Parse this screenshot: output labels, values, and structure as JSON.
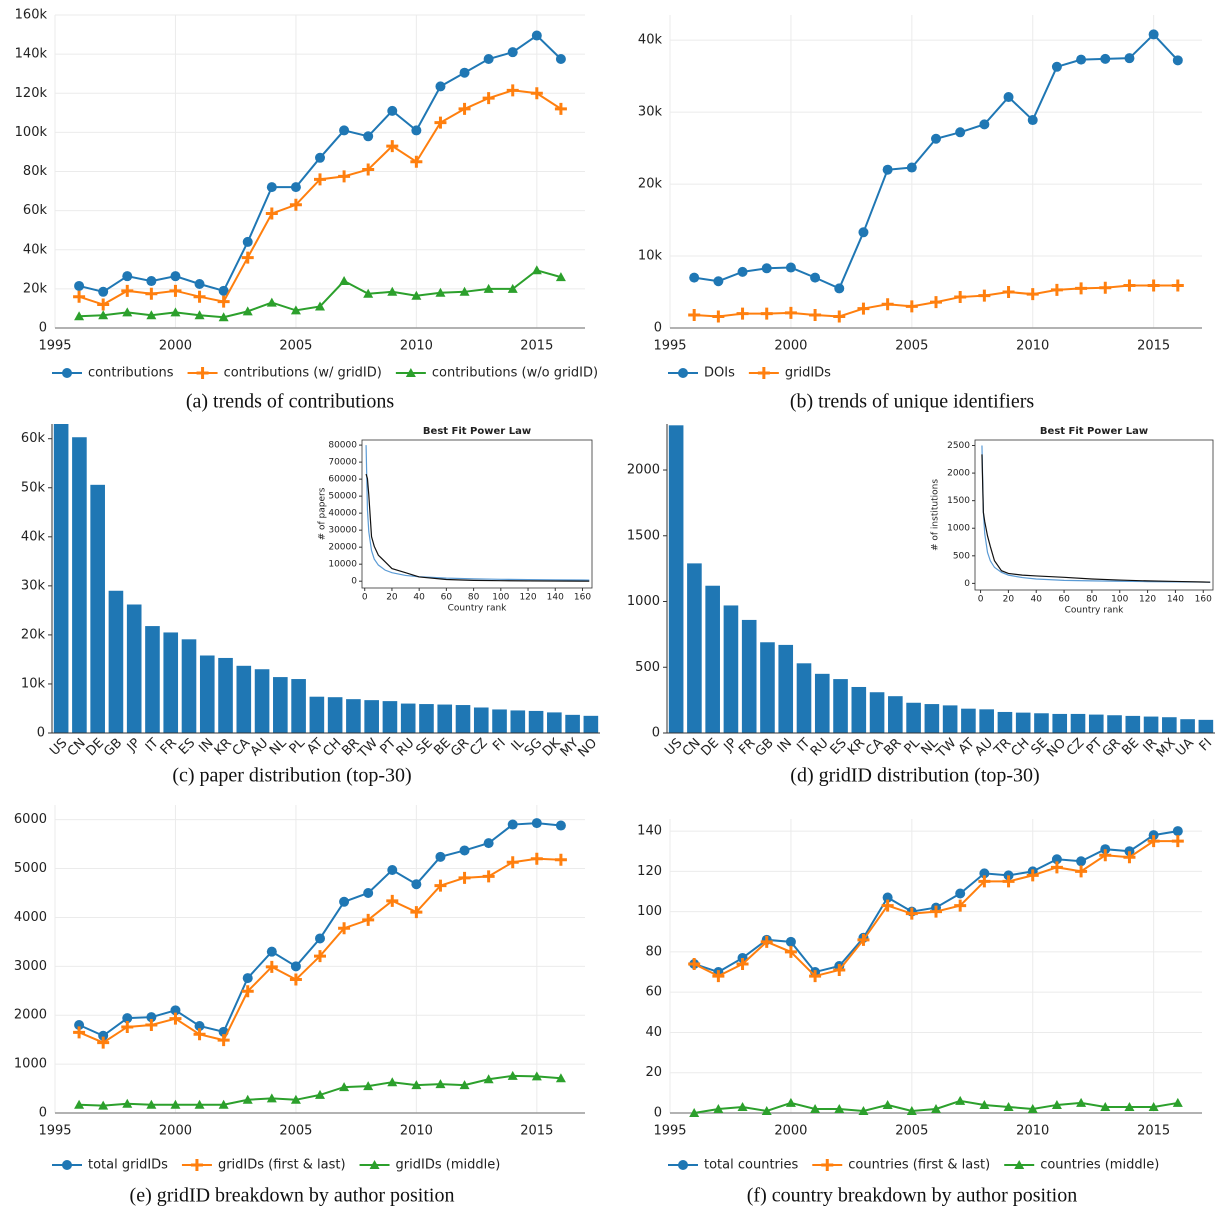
{
  "chart_data": [
    {
      "type": "line",
      "caption": "(a) trends of contributions",
      "x": [
        1996,
        1997,
        1998,
        1999,
        2000,
        2001,
        2002,
        2003,
        2004,
        2005,
        2006,
        2007,
        2008,
        2009,
        2010,
        2011,
        2012,
        2013,
        2014,
        2015,
        2016
      ],
      "xlim": [
        1995,
        2017
      ],
      "xticks": [
        1995,
        2000,
        2005,
        2010,
        2015
      ],
      "ylim": [
        0,
        160000
      ],
      "yticks": [
        0,
        {
          "value": 20000,
          "label": "20k"
        },
        {
          "value": 40000,
          "label": "40k"
        },
        {
          "value": 60000,
          "label": "60k"
        },
        {
          "value": 80000,
          "label": "80k"
        },
        {
          "value": 100000,
          "label": "100k"
        },
        {
          "value": 120000,
          "label": "120k"
        },
        {
          "value": 140000,
          "label": "140k"
        },
        {
          "value": 160000,
          "label": "160k"
        }
      ],
      "grid": true,
      "legend": "bottom",
      "series": [
        {
          "name": "contributions",
          "color": "#1f77b4",
          "marker": "circle",
          "values": [
            21500,
            18500,
            26500,
            24000,
            26500,
            22500,
            19000,
            44000,
            72000,
            72000,
            87000,
            101000,
            98000,
            111000,
            101000,
            123500,
            130500,
            137500,
            141000,
            149500,
            137500
          ]
        },
        {
          "name": "contributions (w/ gridID)",
          "color": "#ff7f0e",
          "marker": "plus",
          "values": [
            16000,
            12000,
            19000,
            17500,
            19000,
            16000,
            13500,
            36000,
            58500,
            63000,
            76000,
            77500,
            81000,
            93000,
            85000,
            105000,
            112000,
            117500,
            121500,
            120000,
            112000
          ]
        },
        {
          "name": "contributions (w/o gridID)",
          "color": "#2ca02c",
          "marker": "triangle",
          "values": [
            6000,
            6500,
            8000,
            6500,
            8000,
            6500,
            5500,
            8500,
            13000,
            9000,
            11000,
            24000,
            17500,
            18500,
            16500,
            18000,
            18500,
            20000,
            20000,
            29500,
            26000
          ]
        }
      ]
    },
    {
      "type": "line",
      "caption": "(b) trends of unique identifiers",
      "x": [
        1996,
        1997,
        1998,
        1999,
        2000,
        2001,
        2002,
        2003,
        2004,
        2005,
        2006,
        2007,
        2008,
        2009,
        2010,
        2011,
        2012,
        2013,
        2014,
        2015,
        2016
      ],
      "xlim": [
        1995,
        2017
      ],
      "xticks": [
        1995,
        2000,
        2005,
        2010,
        2015
      ],
      "ylim": [
        0,
        43500
      ],
      "yticks": [
        0,
        {
          "value": 10000,
          "label": "10k"
        },
        {
          "value": 20000,
          "label": "20k"
        },
        {
          "value": 30000,
          "label": "30k"
        },
        {
          "value": 40000,
          "label": "40k"
        }
      ],
      "grid": true,
      "legend": "bottom",
      "series": [
        {
          "name": "DOIs",
          "color": "#1f77b4",
          "marker": "circle",
          "values": [
            7000,
            6500,
            7800,
            8300,
            8400,
            7000,
            5500,
            13300,
            22000,
            22300,
            26300,
            27200,
            28300,
            32100,
            28900,
            36300,
            37300,
            37400,
            37500,
            40800,
            37200
          ]
        },
        {
          "name": "gridIDs",
          "color": "#ff7f0e",
          "marker": "plus",
          "values": [
            1800,
            1600,
            2000,
            2000,
            2100,
            1800,
            1600,
            2700,
            3300,
            3000,
            3600,
            4300,
            4500,
            5000,
            4700,
            5300,
            5500,
            5600,
            5900,
            5900,
            5900
          ]
        }
      ]
    },
    {
      "type": "bar",
      "caption": "(c) paper distribution (top-30)",
      "color": "#1f77b4",
      "categories": [
        "US",
        "CN",
        "DE",
        "GB",
        "JP",
        "IT",
        "FR",
        "ES",
        "IN",
        "KR",
        "CA",
        "AU",
        "NL",
        "PL",
        "AT",
        "CH",
        "BR",
        "TW",
        "PT",
        "RU",
        "SE",
        "BE",
        "GR",
        "CZ",
        "FI",
        "IL",
        "SG",
        "DK",
        "MY",
        "NO"
      ],
      "values": [
        63000,
        60300,
        50600,
        29000,
        26200,
        21800,
        20500,
        19100,
        15800,
        15300,
        13700,
        13000,
        11400,
        11000,
        7400,
        7300,
        6900,
        6700,
        6500,
        6000,
        5900,
        5800,
        5700,
        5200,
        4800,
        4600,
        4500,
        4200,
        3700,
        3500
      ],
      "ylim": [
        0,
        63000
      ],
      "yticks": [
        0,
        {
          "value": 10000,
          "label": "10k"
        },
        {
          "value": 20000,
          "label": "20k"
        },
        {
          "value": 30000,
          "label": "30k"
        },
        {
          "value": 40000,
          "label": "40k"
        },
        {
          "value": 50000,
          "label": "50k"
        },
        {
          "value": 60000,
          "label": "60k"
        }
      ],
      "inset": {
        "type": "line",
        "title": "Best Fit Power Law",
        "x_label": "Country rank",
        "y_label": "# of papers",
        "x": [
          1,
          2,
          3,
          5,
          7,
          10,
          15,
          20,
          30,
          40,
          60,
          80,
          100,
          120,
          140,
          160,
          165
        ],
        "xlim": [
          -2,
          167
        ],
        "xticks": [
          0,
          20,
          40,
          60,
          80,
          100,
          120,
          140,
          160
        ],
        "ylim": [
          -4000,
          83000
        ],
        "yticks": [
          0,
          10000,
          20000,
          30000,
          40000,
          50000,
          60000,
          70000,
          80000
        ],
        "series": [
          {
            "color": "#5b9bd5",
            "values": [
              80000,
              42000,
              29000,
              18000,
              13000,
              9500,
              6500,
              5000,
              3400,
              2600,
              1800,
              1400,
              1100,
              950,
              800,
              700,
              680
            ]
          },
          {
            "color": "#111111",
            "values": [
              63000,
              60300,
              50600,
              26200,
              20500,
              15300,
              11400,
              7400,
              5000,
              2500,
              1000,
              500,
              300,
              200,
              100,
              50,
              30
            ]
          }
        ]
      }
    },
    {
      "type": "bar",
      "caption": "(d) gridID distribution (top-30)",
      "color": "#1f77b4",
      "categories": [
        "US",
        "CN",
        "DE",
        "JP",
        "FR",
        "GB",
        "IN",
        "IT",
        "RU",
        "ES",
        "KR",
        "CA",
        "BR",
        "PL",
        "NL",
        "TW",
        "AT",
        "AU",
        "TR",
        "CH",
        "SE",
        "NO",
        "CZ",
        "PT",
        "GR",
        "BE",
        "IR",
        "MX",
        "UA",
        "FI"
      ],
      "values": [
        2340,
        1290,
        1120,
        970,
        860,
        690,
        670,
        530,
        450,
        410,
        350,
        310,
        280,
        230,
        220,
        210,
        185,
        180,
        160,
        155,
        150,
        145,
        145,
        140,
        135,
        130,
        125,
        120,
        105,
        100
      ],
      "ylim": [
        0,
        2350
      ],
      "yticks": [
        0,
        500,
        1000,
        1500,
        2000
      ],
      "inset": {
        "type": "line",
        "title": "Best Fit Power Law",
        "x_label": "Country rank",
        "y_label": "# of institutions",
        "x": [
          1,
          2,
          3,
          5,
          7,
          10,
          15,
          20,
          30,
          40,
          60,
          80,
          100,
          120,
          140,
          160,
          165
        ],
        "xlim": [
          -4,
          167
        ],
        "xticks": [
          0,
          20,
          40,
          60,
          80,
          100,
          120,
          140,
          160
        ],
        "ylim": [
          -120,
          2600
        ],
        "yticks": [
          0,
          500,
          1000,
          1500,
          2000,
          2500
        ],
        "series": [
          {
            "color": "#5b9bd5",
            "values": [
              2500,
              1300,
              900,
              560,
              410,
              290,
              200,
              150,
              105,
              80,
              55,
              45,
              38,
              32,
              28,
              24,
              23
            ]
          },
          {
            "color": "#111111",
            "values": [
              2340,
              1290,
              1120,
              860,
              670,
              410,
              230,
              180,
              150,
              135,
              110,
              80,
              60,
              45,
              35,
              25,
              22
            ]
          }
        ]
      }
    },
    {
      "type": "line",
      "caption": "(e) gridID breakdown by author position",
      "x": [
        1996,
        1997,
        1998,
        1999,
        2000,
        2001,
        2002,
        2003,
        2004,
        2005,
        2006,
        2007,
        2008,
        2009,
        2010,
        2011,
        2012,
        2013,
        2014,
        2015,
        2016
      ],
      "xlim": [
        1995,
        2017
      ],
      "xticks": [
        1995,
        2000,
        2005,
        2010,
        2015
      ],
      "ylim": [
        0,
        6300
      ],
      "yticks": [
        0,
        1000,
        2000,
        3000,
        4000,
        5000,
        6000
      ],
      "grid": true,
      "legend": "bottom",
      "series": [
        {
          "name": "total gridIDs",
          "color": "#1f77b4",
          "marker": "circle",
          "values": [
            1800,
            1580,
            1940,
            1960,
            2100,
            1780,
            1660,
            2760,
            3300,
            3000,
            3570,
            4320,
            4500,
            4970,
            4680,
            5240,
            5370,
            5520,
            5900,
            5930,
            5880
          ]
        },
        {
          "name": "gridIDs (first & last)",
          "color": "#ff7f0e",
          "marker": "plus",
          "values": [
            1650,
            1440,
            1760,
            1800,
            1930,
            1610,
            1490,
            2490,
            2990,
            2730,
            3210,
            3780,
            3950,
            4340,
            4110,
            4650,
            4810,
            4840,
            5130,
            5200,
            5180
          ]
        },
        {
          "name": "gridIDs (middle)",
          "color": "#2ca02c",
          "marker": "triangle",
          "values": [
            170,
            150,
            190,
            170,
            170,
            170,
            170,
            270,
            300,
            270,
            370,
            530,
            550,
            630,
            570,
            590,
            570,
            690,
            760,
            750,
            710
          ]
        }
      ]
    },
    {
      "type": "line",
      "caption": "(f) country breakdown by author position",
      "x": [
        1996,
        1997,
        1998,
        1999,
        2000,
        2001,
        2002,
        2003,
        2004,
        2005,
        2006,
        2007,
        2008,
        2009,
        2010,
        2011,
        2012,
        2013,
        2014,
        2015,
        2016
      ],
      "xlim": [
        1995,
        2017
      ],
      "xticks": [
        1995,
        2000,
        2005,
        2010,
        2015
      ],
      "ylim": [
        0,
        146
      ],
      "yticks": [
        0,
        20,
        40,
        60,
        80,
        100,
        120,
        140
      ],
      "grid": true,
      "legend": "bottom",
      "series": [
        {
          "name": "total countries",
          "color": "#1f77b4",
          "marker": "circle",
          "values": [
            74,
            70,
            77,
            86,
            85,
            70,
            73,
            87,
            107,
            100,
            102,
            109,
            119,
            118,
            120,
            126,
            125,
            131,
            130,
            138,
            140
          ]
        },
        {
          "name": "countries (first & last)",
          "color": "#ff7f0e",
          "marker": "plus",
          "values": [
            74,
            68,
            74,
            85,
            80,
            68,
            71,
            86,
            103,
            99,
            100,
            103,
            115,
            115,
            118,
            122,
            120,
            128,
            127,
            135,
            135
          ]
        },
        {
          "name": "countries (middle)",
          "color": "#2ca02c",
          "marker": "triangle",
          "values": [
            0,
            2,
            3,
            1,
            5,
            2,
            2,
            1,
            4,
            1,
            2,
            6,
            4,
            3,
            2,
            4,
            5,
            3,
            3,
            3,
            5
          ]
        }
      ]
    }
  ]
}
